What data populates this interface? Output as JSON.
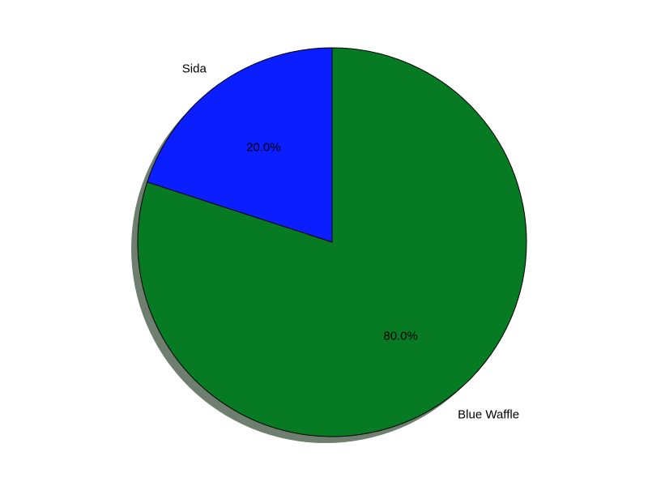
{
  "chart_data": {
    "type": "pie",
    "title": "",
    "slices": [
      {
        "label": "Sida",
        "value": 20.0,
        "pct_label": "20.0%",
        "color": "#0a1eff"
      },
      {
        "label": "Blue Waffle",
        "value": 80.0,
        "pct_label": "80.0%",
        "color": "#077a24"
      }
    ],
    "start_angle_deg": 90,
    "direction": "counterclockwise",
    "shadow": true,
    "shadow_color": "#6e7f6f",
    "legend": "none"
  }
}
